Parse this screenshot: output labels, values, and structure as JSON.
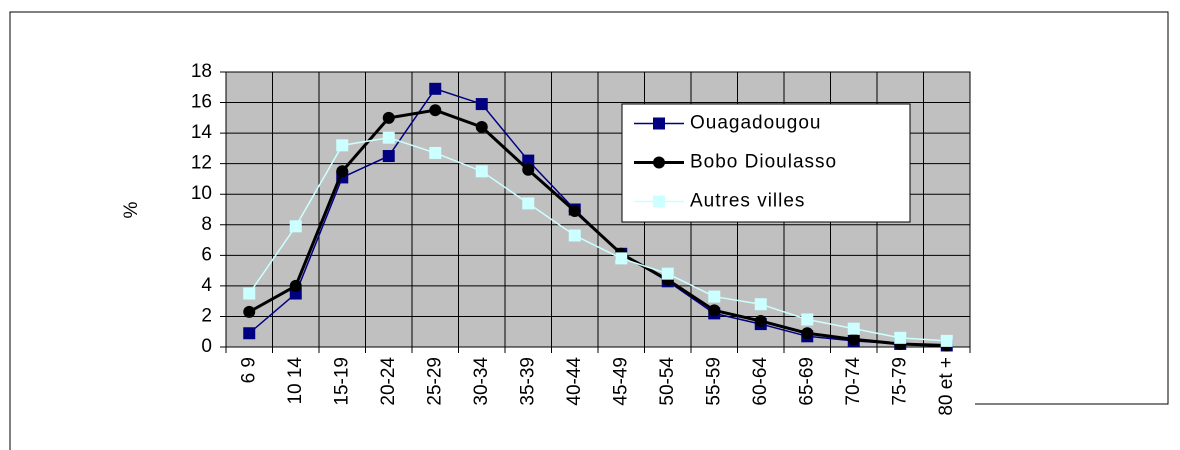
{
  "chart_data": {
    "type": "line",
    "ylabel": "%",
    "categories": [
      "6 9",
      "10 14",
      "15-19",
      "20-24",
      "25-29",
      "30-34",
      "35-39",
      "40-44",
      "45-49",
      "50-54",
      "55-59",
      "60-64",
      "65-69",
      "70-74",
      "75-79",
      "80 et +"
    ],
    "series": [
      {
        "name": "Ouagadougou",
        "color": "#000080",
        "marker": "square",
        "values": [
          0.9,
          3.5,
          11.1,
          12.5,
          16.9,
          15.9,
          12.2,
          9.0,
          6.1,
          4.3,
          2.2,
          1.5,
          0.7,
          0.4,
          0.2,
          0.1
        ]
      },
      {
        "name": "Bobo Dioulasso",
        "color": "#000000",
        "marker": "circle",
        "values": [
          2.3,
          4.0,
          11.5,
          15.0,
          15.5,
          14.4,
          11.6,
          8.9,
          6.1,
          4.4,
          2.4,
          1.7,
          0.9,
          0.5,
          0.2,
          0.1
        ]
      },
      {
        "name": "Autres villes",
        "color": "#ccffff",
        "marker": "square",
        "values": [
          3.5,
          7.9,
          13.2,
          13.7,
          12.7,
          11.5,
          9.4,
          7.3,
          5.8,
          4.8,
          3.3,
          2.8,
          1.8,
          1.2,
          0.6,
          0.4
        ]
      }
    ],
    "ylim": [
      0,
      18
    ],
    "yticks": [
      0,
      2,
      4,
      6,
      8,
      10,
      12,
      14,
      16,
      18
    ],
    "grid": true
  }
}
